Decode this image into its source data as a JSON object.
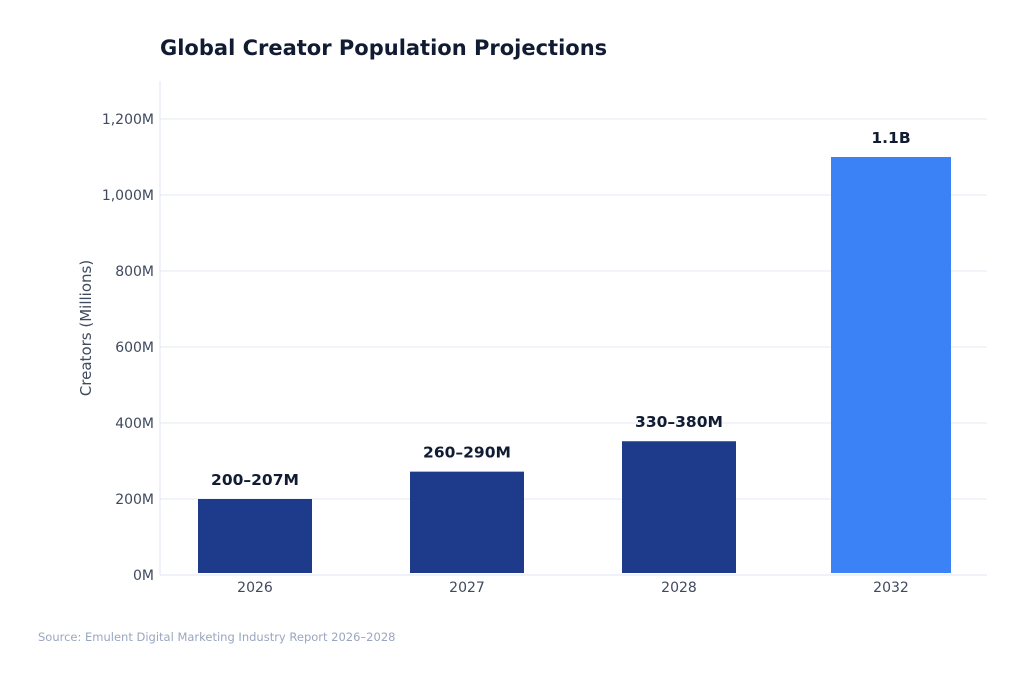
{
  "chart_data": {
    "type": "bar",
    "title": "Global Creator Population Projections",
    "xlabel": "",
    "ylabel": "Creators (Millions)",
    "ylim": [
      0,
      1300
    ],
    "yticks": [
      0,
      200,
      400,
      600,
      800,
      1000,
      1200
    ],
    "ytick_labels": [
      "0M",
      "200M",
      "400M",
      "600M",
      "800M",
      "1,000M",
      "1,200M"
    ],
    "categories": [
      "2026",
      "2027",
      "2028",
      "2032"
    ],
    "values": [
      200,
      272,
      352,
      1100
    ],
    "data_labels": [
      "200–207M",
      "260–290M",
      "330–380M",
      "1.1B"
    ],
    "colors": [
      "#1e3a8a",
      "#1e3a8a",
      "#1e3a8a",
      "#3b82f6"
    ],
    "grid": true,
    "legend": "none",
    "source": "Source: Emulent Digital Marketing Industry Report 2026–2028"
  }
}
